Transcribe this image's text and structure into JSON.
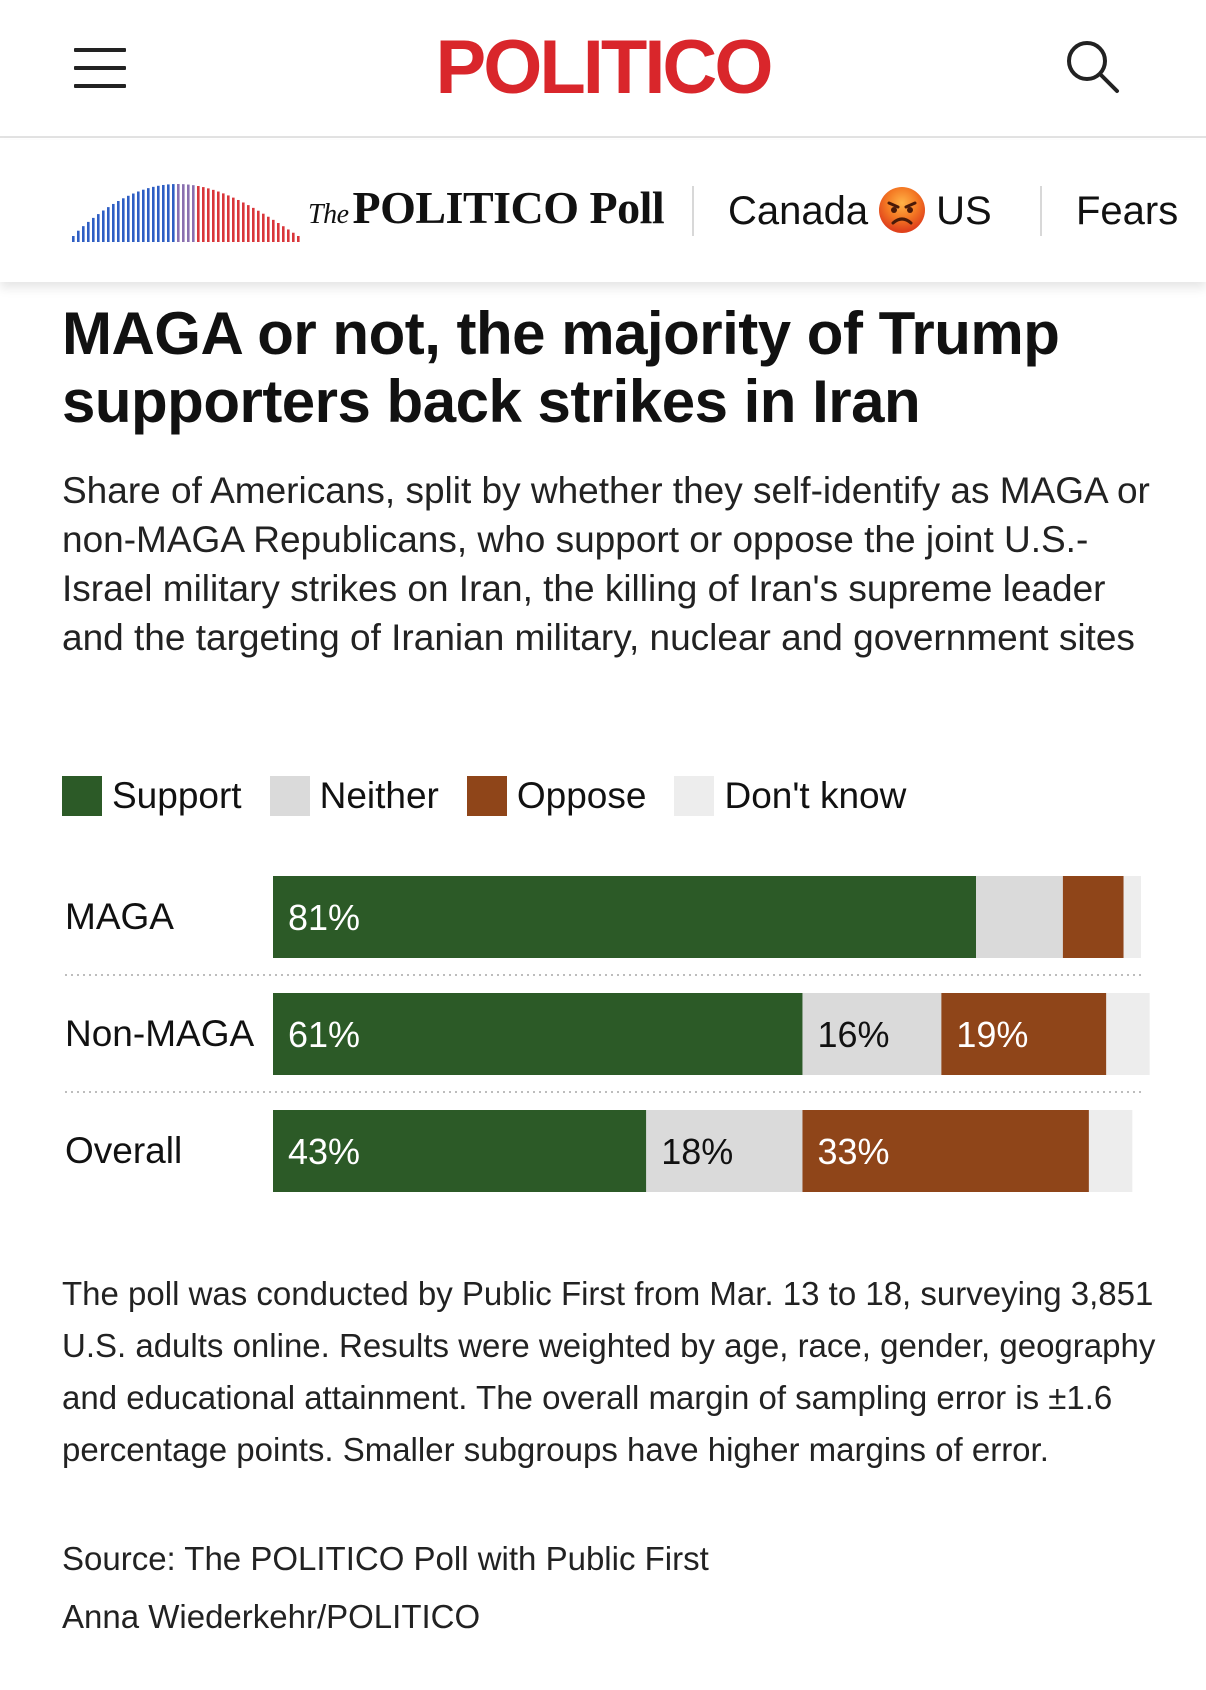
{
  "header": {
    "logo": "POLITICO",
    "menu_icon": "hamburger-menu-icon",
    "search_icon": "search-icon"
  },
  "poll_nav": {
    "brand_prefix": "The",
    "brand_name": "POLITICO Poll",
    "links": [
      {
        "label_left": "Canada",
        "emoji": "angry-face",
        "label_right": "US"
      },
      {
        "label": "Fears"
      }
    ]
  },
  "article": {
    "headline": "MAGA or not, the majority of Trump supporters back strikes in Iran",
    "subhead": "Share of Americans, split by whether they self-identify as MAGA or non-MAGA Republicans, who support or oppose the joint U.S.-Israel military strikes on Iran, the killing of Iran's supreme leader and the targeting of Iranian military, nuclear and government sites"
  },
  "chart_data": {
    "type": "bar",
    "orientation": "horizontal-stacked",
    "categories": [
      "MAGA",
      "Non-MAGA",
      "Overall"
    ],
    "series": [
      {
        "name": "Support",
        "color": "#2c5a27",
        "values": [
          81,
          61,
          43
        ]
      },
      {
        "name": "Neither",
        "color": "#dadada",
        "values": [
          10,
          16,
          18
        ]
      },
      {
        "name": "Oppose",
        "color": "#8f4519",
        "values": [
          7,
          19,
          33
        ]
      },
      {
        "name": "Don't know",
        "color": "#ededed",
        "values": [
          2,
          5,
          5
        ]
      }
    ],
    "labels": [
      [
        "81%",
        "",
        "",
        ""
      ],
      [
        "61%",
        "16%",
        "19%",
        ""
      ],
      [
        "43%",
        "18%",
        "33%",
        ""
      ]
    ],
    "label_colors": [
      "#ffffff",
      "#111111",
      "#ffffff",
      "#111111"
    ],
    "xlim": [
      0,
      100
    ],
    "legend_position": "top-left"
  },
  "notes": {
    "methodology": "The poll was conducted by Public First from Mar. 13 to 18, surveying 3,851 U.S. adults online. Results were weighted by age, race, gender, geography and educational attainment. The overall margin of sampling error is ±1.6 percentage points. Smaller subgroups have higher margins of error.",
    "source": "Source: The POLITICO Poll with Public First",
    "credit": "Anna Wiederkehr/POLITICO"
  }
}
